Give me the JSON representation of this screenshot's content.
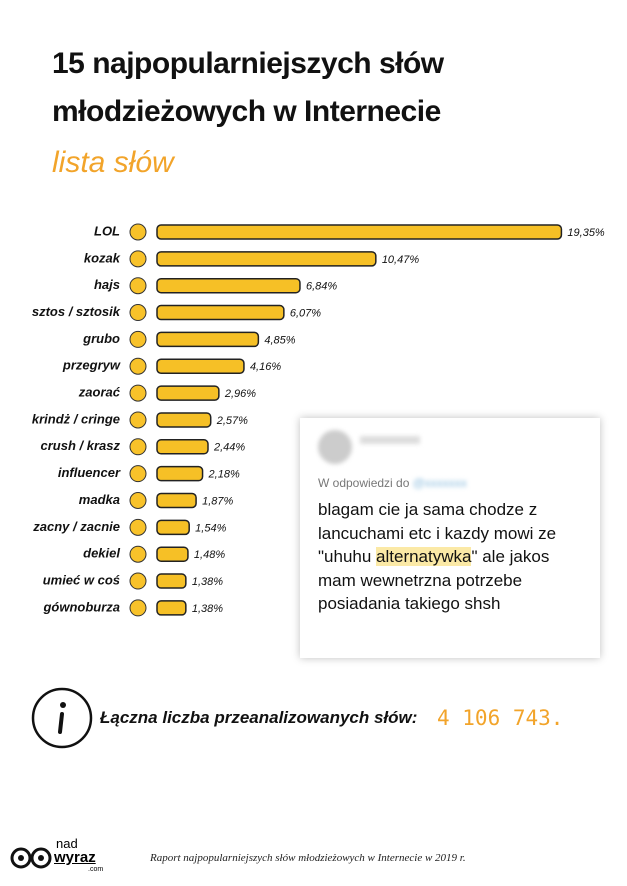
{
  "chart_data": {
    "type": "bar",
    "orientation": "horizontal",
    "title": "15 najpopularniejszych słów młodzieżowych w Internecie",
    "subtitle": "lista słów",
    "categories": [
      "LOL",
      "kozak",
      "hajs",
      "sztos / sztosik",
      "grubo",
      "przegryw",
      "zaorać",
      "krindż / cringe",
      "crush / krasz",
      "influencer",
      "madka",
      "zacny / zacnie",
      "dekiel",
      "umieć w coś",
      "gównoburza"
    ],
    "values": [
      19.35,
      10.47,
      6.84,
      6.07,
      4.85,
      4.16,
      2.96,
      2.57,
      2.44,
      2.18,
      1.87,
      1.54,
      1.48,
      1.38,
      1.38
    ],
    "value_labels": [
      "19,35%",
      "10,47%",
      "6,84%",
      "6,07%",
      "4,85%",
      "4,16%",
      "2,96%",
      "2,57%",
      "2,44%",
      "2,18%",
      "1,87%",
      "1,54%",
      "1,48%",
      "1,38%",
      "1,38%"
    ],
    "color": "#f6c026"
  },
  "tweet": {
    "reply_to": "W odpowiedzi do",
    "lines": [
      "blagam cie ja sama chodze z",
      "lancuchami etc i kazdy mowi ze",
      [
        "\"uhuhu ",
        "alternatywka",
        "\" ale jakos"
      ],
      "mam wewnetrzna potrzebe",
      "posiadania takiego shsh"
    ]
  },
  "info": {
    "text": "Łączna liczba przeanalizowanych słów:",
    "total": "4 106 743."
  },
  "footer": {
    "logo_top": "nad",
    "logo_bottom": "wyraz",
    "logo_domain": ".com",
    "text": "Raport najpopularniejszych słów młodzieżowych w Internecie w 2019 r."
  }
}
